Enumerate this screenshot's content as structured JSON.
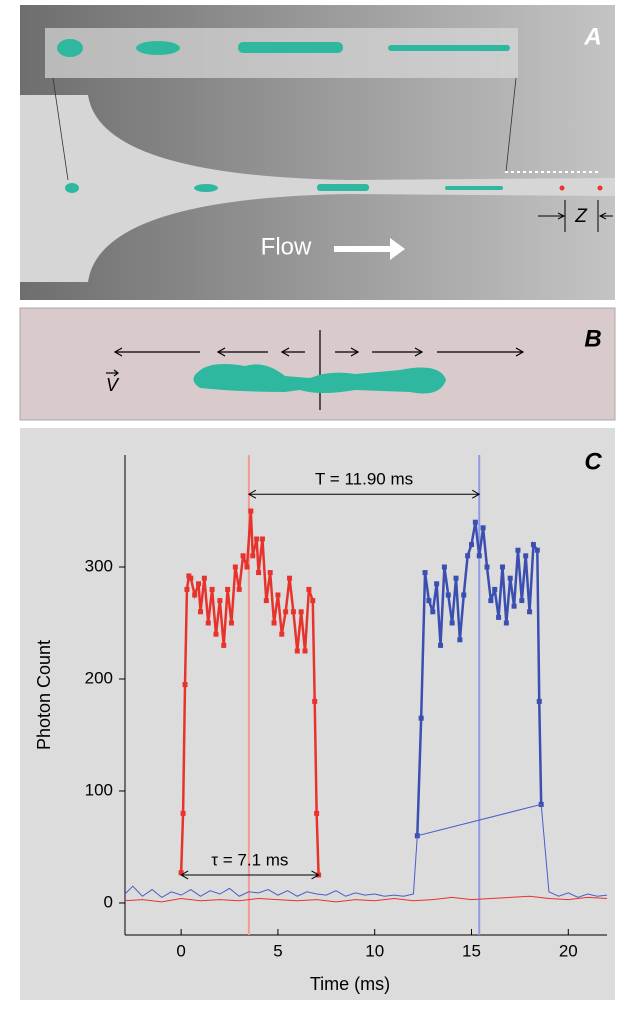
{
  "panels": {
    "a": {
      "label": "A",
      "flow": "Flow",
      "z": "Z"
    },
    "b": {
      "label": "B",
      "v": "V"
    }
  },
  "chart_data": {
    "type": "line",
    "panel_label": "C",
    "x_label": "Time (ms)",
    "y_label": "Photon Count",
    "xlim": [
      -2.9,
      22
    ],
    "ylim": [
      -28.6,
      400
    ],
    "xticks": [
      0,
      5,
      10,
      15,
      20
    ],
    "yticks": [
      0,
      100,
      200,
      300
    ],
    "series": [
      {
        "color": "#e8332c",
        "marker": true,
        "width": 2.5,
        "x": [
          0,
          0.1,
          0.2,
          0.3,
          0.4,
          0.5,
          0.7,
          0.9,
          1.0,
          1.2,
          1.4,
          1.6,
          1.8,
          2.0,
          2.2,
          2.4,
          2.6,
          2.8,
          3.0,
          3.2,
          3.4,
          3.6,
          3.7,
          3.9,
          4.0,
          4.2,
          4.4,
          4.6,
          4.8,
          5.0,
          5.2,
          5.4,
          5.6,
          5.8,
          6.0,
          6.2,
          6.4,
          6.6,
          6.8,
          6.9,
          7.0,
          7.1
        ],
        "values": [
          27,
          80,
          195,
          280,
          292,
          290,
          275,
          285,
          260,
          290,
          250,
          280,
          240,
          270,
          230,
          280,
          250,
          300,
          280,
          310,
          300,
          350,
          310,
          325,
          295,
          325,
          270,
          295,
          250,
          275,
          240,
          260,
          290,
          260,
          225,
          260,
          225,
          280,
          270,
          180,
          80,
          25
        ]
      },
      {
        "color": "#3a4fb0",
        "marker": true,
        "width": 2.5,
        "x": [
          12.2,
          12.4,
          12.6,
          12.8,
          13.0,
          13.2,
          13.4,
          13.6,
          13.8,
          14.0,
          14.2,
          14.4,
          14.6,
          14.8,
          15.0,
          15.2,
          15.4,
          15.6,
          15.8,
          16.0,
          16.2,
          16.4,
          16.6,
          16.8,
          17.0,
          17.2,
          17.4,
          17.6,
          17.8,
          18.0,
          18.2,
          18.4,
          18.5,
          18.6
        ],
        "values": [
          60,
          165,
          295,
          270,
          260,
          285,
          230,
          300,
          275,
          250,
          290,
          235,
          275,
          310,
          320,
          340,
          310,
          335,
          300,
          270,
          280,
          255,
          300,
          250,
          290,
          265,
          315,
          270,
          310,
          260,
          320,
          315,
          180,
          88
        ]
      },
      {
        "color": "#4a5ec8",
        "marker": false,
        "width": 1,
        "x": [
          -2.9,
          -2.5,
          -2,
          -1.5,
          -1,
          -0.5,
          0,
          0.5,
          1,
          1.5,
          2,
          2.5,
          3,
          3.5,
          4,
          4.5,
          5,
          5.5,
          6,
          6.5,
          7,
          7.5,
          8,
          8.5,
          9,
          9.5,
          10,
          10.5,
          11,
          11.5,
          12,
          12.2,
          18.6,
          19,
          19.5,
          20,
          20.5,
          21,
          21.5,
          22
        ],
        "values": [
          8,
          15,
          6,
          12,
          5,
          10,
          7,
          12,
          6,
          11,
          8,
          13,
          6,
          10,
          9,
          12,
          7,
          11,
          6,
          10,
          8,
          7,
          11,
          6,
          9,
          7,
          8,
          6,
          7,
          6,
          8,
          60,
          88,
          10,
          6,
          9,
          5,
          8,
          6,
          7
        ]
      },
      {
        "color": "#e8332c",
        "marker": false,
        "width": 1,
        "x": [
          -2.9,
          -2,
          -1,
          0,
          1,
          2,
          3,
          4,
          5,
          6,
          7,
          8,
          9,
          10,
          11,
          12,
          13,
          14,
          15,
          16,
          17,
          18,
          19,
          20,
          21,
          22
        ],
        "values": [
          2,
          3,
          1,
          4,
          2,
          3,
          2,
          4,
          3,
          2,
          3,
          1,
          3,
          2,
          4,
          2,
          3,
          5,
          3,
          4,
          5,
          6,
          4,
          3,
          5,
          4
        ]
      }
    ],
    "vlines": [
      {
        "x": 3.5,
        "color": "#f29a94"
      },
      {
        "x": 15.4,
        "color": "#8f9ae0"
      }
    ],
    "annotations": [
      {
        "text": "T = 11.90 ms",
        "x": [
          3.5,
          15.4
        ],
        "y": 365
      },
      {
        "text": "τ = 7.1 ms",
        "x": [
          0,
          7.1
        ],
        "y": 25
      }
    ]
  }
}
